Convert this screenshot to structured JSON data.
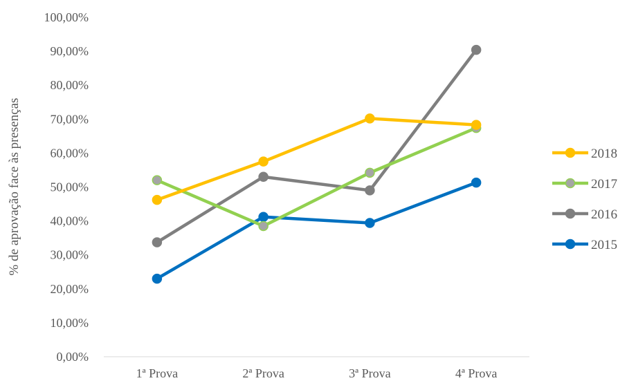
{
  "chart_data": {
    "type": "line",
    "title": "",
    "xlabel": "",
    "ylabel": "% de aprovação face às presenças",
    "categories": [
      "1ª Prova",
      "2ª Prova",
      "3ª Prova",
      "4ª Prova"
    ],
    "y_ticks": [
      "0,00%",
      "10,00%",
      "20,00%",
      "30,00%",
      "40,00%",
      "50,00%",
      "60,00%",
      "70,00%",
      "80,00%",
      "90,00%",
      "100,00%"
    ],
    "ylim": [
      0,
      100
    ],
    "grid": false,
    "legend_position": "right",
    "series": [
      {
        "name": "2018",
        "color": "#FFC000",
        "marker_fill": "#FFC000",
        "values": [
          46.2,
          57.5,
          70.2,
          68.3
        ]
      },
      {
        "name": "2017",
        "color": "#92D050",
        "marker_fill": "#A5A5A5",
        "values": [
          52.0,
          38.5,
          54.2,
          67.4
        ]
      },
      {
        "name": "2016",
        "color": "#7F7F7F",
        "marker_fill": "#7F7F7F",
        "values": [
          33.7,
          53.0,
          49.0,
          90.4
        ]
      },
      {
        "name": "2015",
        "color": "#0070C0",
        "marker_fill": "#0070C0",
        "values": [
          23.0,
          41.2,
          39.4,
          51.3
        ]
      }
    ]
  }
}
